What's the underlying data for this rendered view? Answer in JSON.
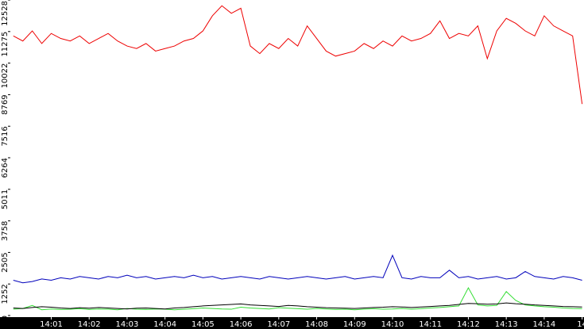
{
  "chart_data": {
    "type": "line",
    "x": [
      0,
      0.25,
      0.5,
      0.75,
      1,
      1.25,
      1.5,
      1.75,
      2,
      2.25,
      2.5,
      2.75,
      3,
      3.25,
      3.5,
      3.75,
      4,
      4.25,
      4.5,
      4.75,
      5,
      5.25,
      5.5,
      5.75,
      6,
      6.25,
      6.5,
      6.75,
      7,
      7.25,
      7.5,
      7.75,
      8,
      8.25,
      8.5,
      8.75,
      9,
      9.25,
      9.5,
      9.75,
      10,
      10.25,
      10.5,
      10.75,
      11,
      11.25,
      11.5,
      11.75,
      12,
      12.25,
      12.5,
      12.75,
      13,
      13.25,
      13.5,
      13.75,
      14,
      14.25,
      14.5,
      14.75,
      15
    ],
    "series": [
      {
        "color": "#ee0000",
        "values": [
          11100,
          10900,
          11300,
          10800,
          11200,
          11000,
          10900,
          11100,
          10800,
          11000,
          11200,
          10900,
          10700,
          10600,
          10800,
          10500,
          10600,
          10700,
          10900,
          11000,
          11300,
          11900,
          12300,
          12000,
          12200,
          10700,
          10400,
          10800,
          10600,
          11000,
          10700,
          11500,
          11000,
          10500,
          10300,
          10400,
          10500,
          10800,
          10600,
          10900,
          10700,
          11100,
          10900,
          11000,
          11200,
          11700,
          11000,
          11200,
          11100,
          11500,
          10200,
          11300,
          11800,
          11600,
          11300,
          11100,
          11900,
          11500,
          11300,
          11100,
          8400
        ]
      },
      {
        "color": "#0000bb",
        "values": [
          1400,
          1300,
          1350,
          1450,
          1400,
          1500,
          1450,
          1550,
          1500,
          1450,
          1550,
          1500,
          1600,
          1500,
          1550,
          1450,
          1500,
          1550,
          1500,
          1600,
          1500,
          1550,
          1450,
          1500,
          1550,
          1500,
          1450,
          1550,
          1500,
          1450,
          1500,
          1550,
          1500,
          1450,
          1500,
          1550,
          1450,
          1500,
          1550,
          1500,
          2390,
          1500,
          1450,
          1550,
          1500,
          1500,
          1800,
          1500,
          1550,
          1450,
          1500,
          1550,
          1450,
          1500,
          1750,
          1550,
          1500,
          1450,
          1550,
          1500,
          1400
        ]
      },
      {
        "color": "#33dd33",
        "values": [
          250,
          280,
          400,
          230,
          260,
          240,
          250,
          270,
          240,
          260,
          250,
          230,
          280,
          250,
          240,
          260,
          250,
          230,
          250,
          270,
          300,
          280,
          260,
          250,
          330,
          300,
          280,
          260,
          310,
          290,
          270,
          250,
          280,
          260,
          240,
          250,
          230,
          250,
          270,
          250,
          260,
          280,
          250,
          270,
          300,
          320,
          350,
          380,
          1100,
          420,
          380,
          400,
          950,
          600,
          420,
          380,
          350,
          330,
          300,
          280,
          270
        ]
      },
      {
        "color": "#000000",
        "values": [
          300,
          280,
          320,
          350,
          330,
          300,
          280,
          310,
          290,
          320,
          300,
          280,
          260,
          290,
          300,
          280,
          260,
          300,
          320,
          350,
          380,
          400,
          420,
          440,
          460,
          420,
          400,
          380,
          360,
          400,
          380,
          350,
          330,
          310,
          300,
          290,
          280,
          300,
          320,
          330,
          350,
          340,
          320,
          340,
          360,
          380,
          400,
          440,
          480,
          470,
          450,
          460,
          500,
          470,
          450,
          420,
          400,
          380,
          360,
          350,
          340
        ]
      }
    ],
    "xlim": [
      -0.1,
      15.05
    ],
    "xticks": [
      {
        "value": 1,
        "label": "14:01"
      },
      {
        "value": 2,
        "label": "14:02"
      },
      {
        "value": 3,
        "label": "14:03"
      },
      {
        "value": 4,
        "label": "14:04"
      },
      {
        "value": 5,
        "label": "14:05"
      },
      {
        "value": 6,
        "label": "14:06"
      },
      {
        "value": 7,
        "label": "14:07"
      },
      {
        "value": 8,
        "label": "14:08"
      },
      {
        "value": 9,
        "label": "14:09"
      },
      {
        "value": 10,
        "label": "14:10"
      },
      {
        "value": 11,
        "label": "14:11"
      },
      {
        "value": 12,
        "label": "14:12"
      },
      {
        "value": 13,
        "label": "14:13"
      },
      {
        "value": 14,
        "label": "14:14"
      },
      {
        "value": 15,
        "label": "14"
      }
    ],
    "ylim": [
      0,
      12528
    ],
    "yticks": [
      0,
      1252,
      2505,
      3758,
      5011,
      6264,
      7516,
      8769,
      10022,
      11275,
      12528
    ]
  }
}
